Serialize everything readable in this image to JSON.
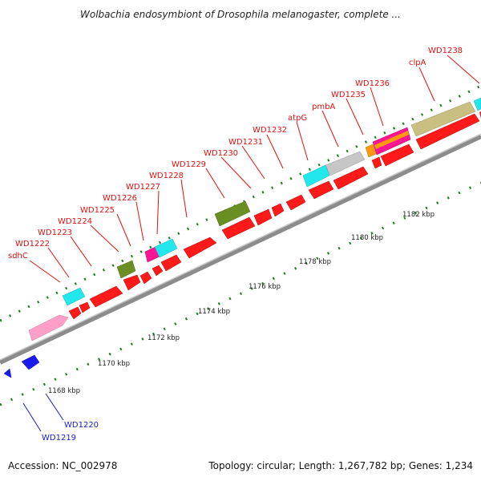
{
  "header": {
    "title": "Wolbachia endosymbiont of Drosophila melanogaster, complete ..."
  },
  "footer": {
    "accession": "Accession: NC_002978",
    "summary": "Topology: circular; Length: 1,267,782 bp; Genes: 1,234"
  },
  "scale": {
    "ticks": [
      "1168 kbp",
      "1170 kbp",
      "1172 kbp",
      "1174 kbp",
      "1176 kbp",
      "1178 kbp",
      "1180 kbp",
      "1182 kbp"
    ]
  },
  "gene_labels": {
    "top": [
      "sdhC",
      "WD1222",
      "WD1223",
      "WD1224",
      "WD1225",
      "WD1226",
      "WD1227",
      "WD1228",
      "WD1229",
      "WD1230",
      "WD1231",
      "WD1232",
      "atpG",
      "pmbA",
      "WD1235",
      "WD1236",
      "clpA",
      "WD1238"
    ],
    "bottom": [
      "WD1219",
      "WD1220"
    ]
  },
  "colors": {
    "label_forward": "#e01010",
    "label_reverse": "#1a1ad0",
    "backbone": "#8c8c8c",
    "tick_dot": "#1f7a1f",
    "gene_red": "#ff1a1a",
    "gene_cyan": "#22e8ee",
    "gene_olive": "#6b8e23",
    "gene_pink": "#ff9ec8",
    "gene_magenta": "#ff1493",
    "gene_khaki": "#c8bf80",
    "gene_silver": "#c6c6c6",
    "gene_orange": "#ff9a10",
    "gene_blue": "#1a1af0"
  }
}
